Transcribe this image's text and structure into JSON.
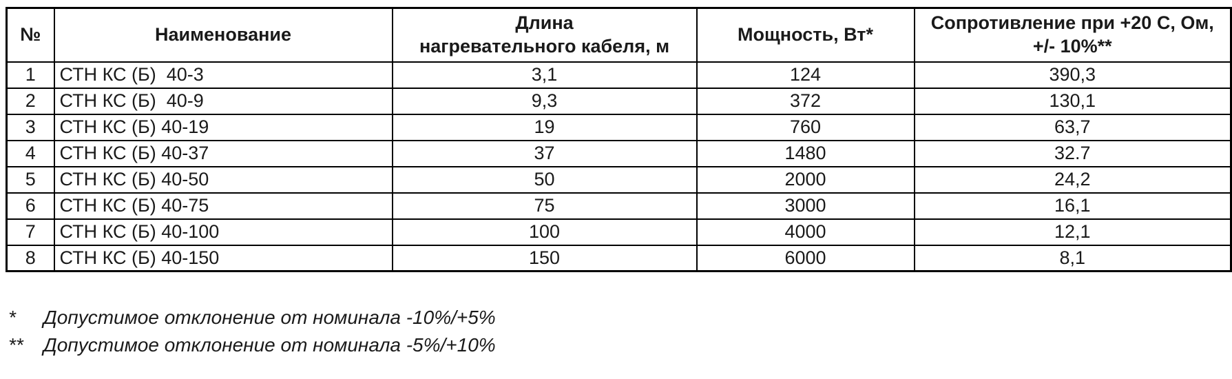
{
  "table": {
    "columns": [
      {
        "label": "№"
      },
      {
        "label": "Наименование"
      },
      {
        "label": "Длина\nнагревательного кабеля, м"
      },
      {
        "label": "Мощность, Вт*"
      },
      {
        "label": "Сопротивление при +20 С, Ом,\n+/- 10%**"
      }
    ],
    "rows": [
      {
        "num": "1",
        "name": "СТН КС (Б)  40-3",
        "length": "3,1",
        "power": "124",
        "resistance": "390,3"
      },
      {
        "num": "2",
        "name": "СТН КС (Б)  40-9",
        "length": "9,3",
        "power": "372",
        "resistance": "130,1"
      },
      {
        "num": "3",
        "name": "СТН КС (Б) 40-19",
        "length": "19",
        "power": "760",
        "resistance": "63,7"
      },
      {
        "num": "4",
        "name": "СТН КС (Б) 40-37",
        "length": "37",
        "power": "1480",
        "resistance": "32.7"
      },
      {
        "num": "5",
        "name": "СТН КС (Б) 40-50",
        "length": "50",
        "power": "2000",
        "resistance": "24,2"
      },
      {
        "num": "6",
        "name": "СТН КС (Б) 40-75",
        "length": "75",
        "power": "3000",
        "resistance": "16,1"
      },
      {
        "num": "7",
        "name": "СТН КС (Б) 40-100",
        "length": "100",
        "power": "4000",
        "resistance": "12,1"
      },
      {
        "num": "8",
        "name": "СТН КС (Б) 40-150",
        "length": "150",
        "power": "6000",
        "resistance": "8,1"
      }
    ]
  },
  "footnotes": [
    {
      "marker": "*",
      "text": "Допустимое отклонение от номинала -10%/+5%"
    },
    {
      "marker": "**",
      "text": "Допустимое отклонение от номинала -5%/+10%"
    }
  ],
  "colors": {
    "border": "#000000",
    "background": "#ffffff",
    "text": "#1a1a1a"
  }
}
